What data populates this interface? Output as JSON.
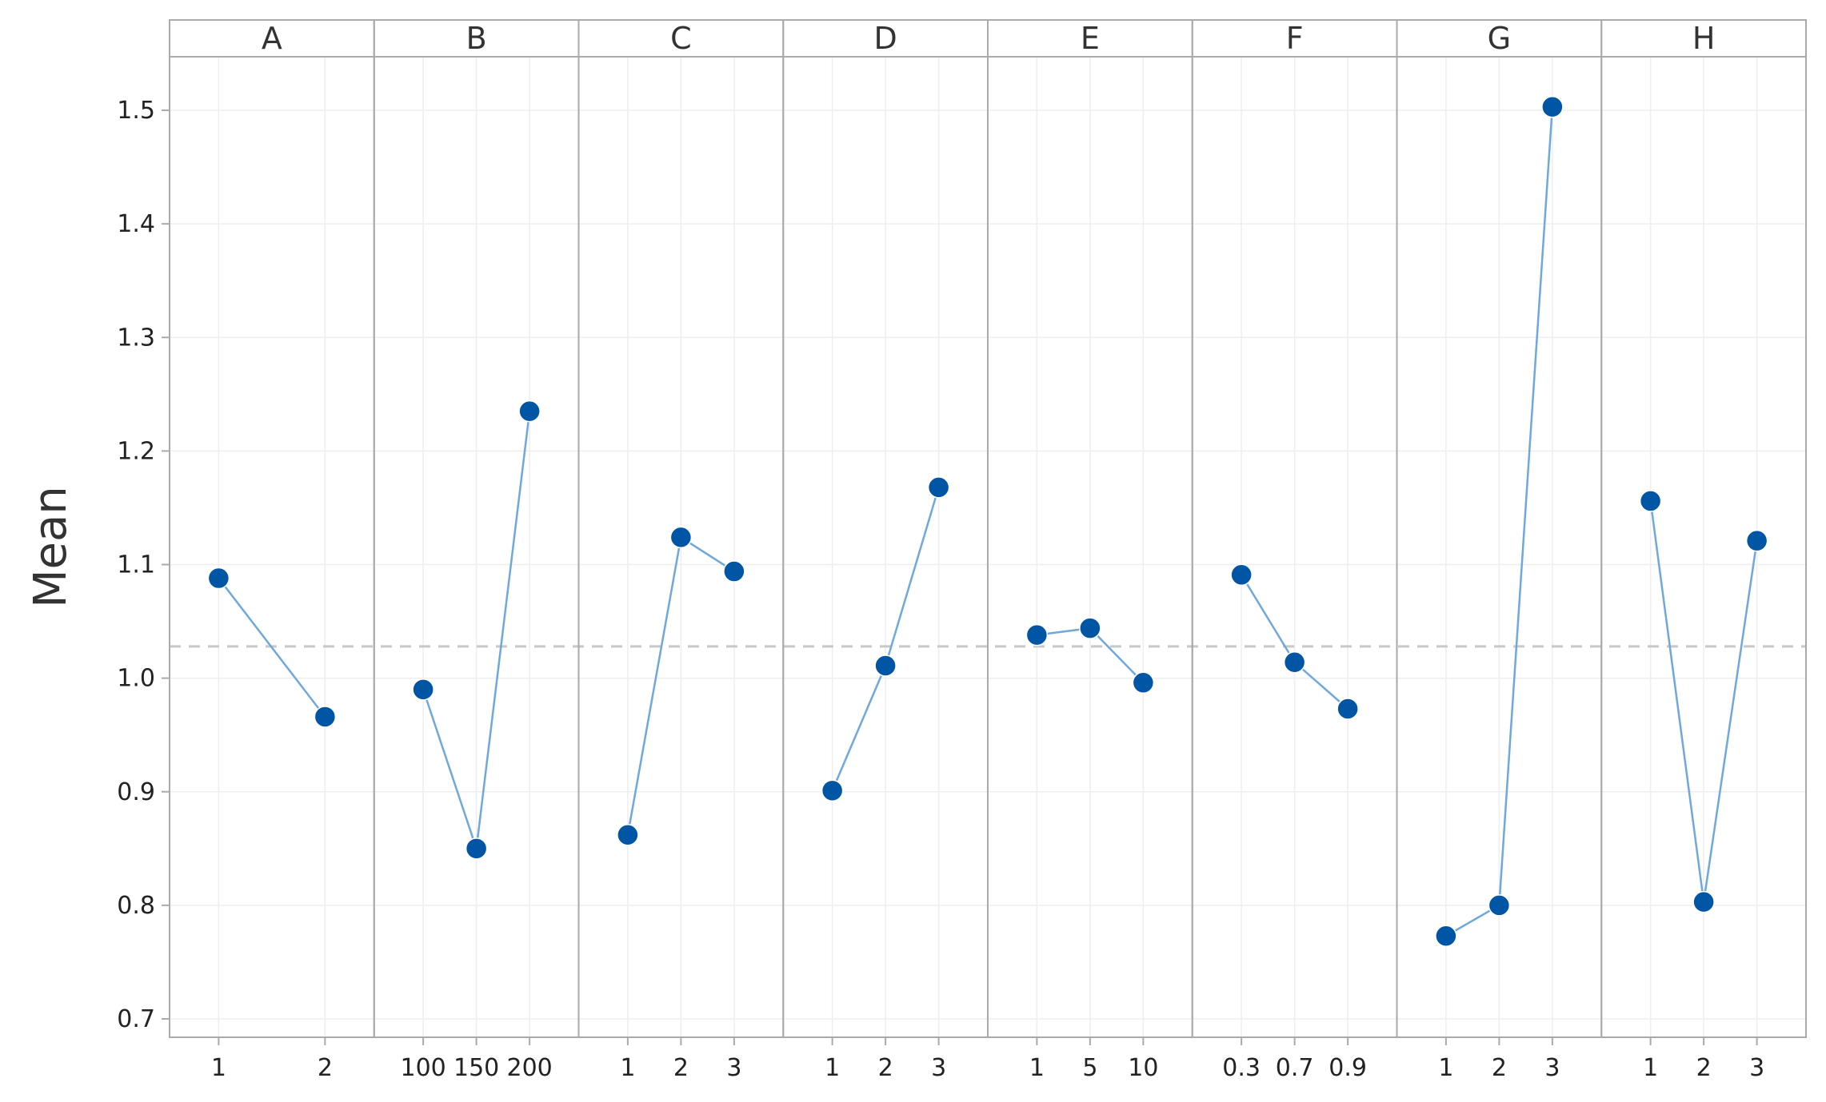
{
  "chart_data": {
    "type": "line",
    "ylabel": "Mean",
    "ylim": [
      0.7,
      1.55
    ],
    "yticks": [
      0.7,
      0.8,
      0.9,
      1.0,
      1.1,
      1.2,
      1.3,
      1.4,
      1.5
    ],
    "ytick_labels": [
      "0.7",
      "0.8",
      "0.9",
      "1.0",
      "1.1",
      "1.2",
      "1.3",
      "1.4",
      "1.5"
    ],
    "overall_mean": 1.028,
    "grid": true,
    "colors": {
      "line": "#6fa8dc",
      "marker": "#0055a5",
      "reference": "#c8c8c8",
      "frame": "#aaaaaa",
      "grid": "#eeeeee"
    },
    "panels": [
      {
        "name": "A",
        "levels": [
          "1",
          "2"
        ],
        "values": [
          1.088,
          0.966
        ]
      },
      {
        "name": "B",
        "levels": [
          "100",
          "150",
          "200"
        ],
        "values": [
          0.99,
          0.85,
          1.235
        ]
      },
      {
        "name": "C",
        "levels": [
          "1",
          "2",
          "3"
        ],
        "values": [
          0.862,
          1.124,
          1.094
        ]
      },
      {
        "name": "D",
        "levels": [
          "1",
          "2",
          "3"
        ],
        "values": [
          0.901,
          1.011,
          1.168
        ]
      },
      {
        "name": "E",
        "levels": [
          "1",
          "5",
          "10"
        ],
        "values": [
          1.038,
          1.044,
          0.996
        ]
      },
      {
        "name": "F",
        "levels": [
          "0.3",
          "0.7",
          "0.9"
        ],
        "values": [
          1.091,
          1.014,
          0.973
        ]
      },
      {
        "name": "G",
        "levels": [
          "1",
          "2",
          "3"
        ],
        "values": [
          0.773,
          0.8,
          1.503
        ]
      },
      {
        "name": "H",
        "levels": [
          "1",
          "2",
          "3"
        ],
        "values": [
          1.156,
          0.803,
          1.121
        ]
      }
    ]
  }
}
